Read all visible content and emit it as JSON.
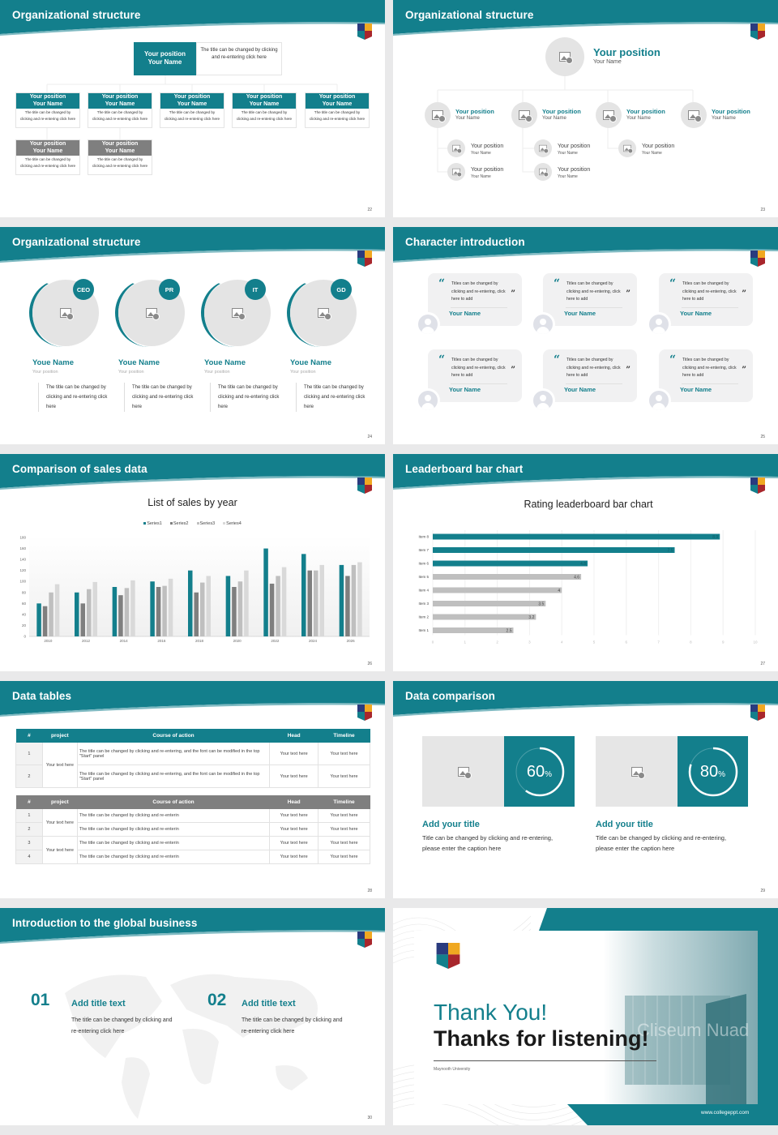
{
  "colors": {
    "accent": "#137f8c",
    "gray": "#7f7f7f",
    "panel": "#e6e6e6"
  },
  "s22": {
    "title": "Organizational structure",
    "page": "22",
    "head": {
      "position": "Your position",
      "name": "Your Name",
      "desc": "The title can be changed by clicking and re-entering click here"
    },
    "members": [
      {
        "position": "Your position",
        "name": "Your Name",
        "desc": "The title can be changed by clicking and re-entering click here",
        "tone": "accent"
      },
      {
        "position": "Your position",
        "name": "Your Name",
        "desc": "The title can be changed by clicking and re-entering click here",
        "tone": "accent"
      },
      {
        "position": "Your position",
        "name": "Your Name",
        "desc": "The title can be changed by clicking and re-entering click here",
        "tone": "accent"
      },
      {
        "position": "Your position",
        "name": "Your Name",
        "desc": "The title can be changed by clicking and re-entering click here",
        "tone": "accent"
      },
      {
        "position": "Your position",
        "name": "Your Name",
        "desc": "The title can be changed by clicking and re-entering click here",
        "tone": "accent"
      },
      {
        "position": "Your position",
        "name": "Your Name",
        "desc": "The title can be changed by clicking and re-entering click here",
        "tone": "gray"
      },
      {
        "position": "Your position",
        "name": "Your Name",
        "desc": "The title can be changed by clicking and re-entering click here",
        "tone": "gray"
      }
    ]
  },
  "s23": {
    "title": "Organizational structure",
    "page": "23",
    "head": {
      "position": "Your position",
      "name": "Your Name"
    },
    "branches": [
      {
        "position": "Your position",
        "name": "Your Name",
        "children": [
          {
            "position": "Your position",
            "name": "Your Name"
          },
          {
            "position": "Your position",
            "name": "Your Name"
          }
        ]
      },
      {
        "position": "Your position",
        "name": "Your Name",
        "children": [
          {
            "position": "Your position",
            "name": "Your Name"
          },
          {
            "position": "Your position",
            "name": "Your Name"
          }
        ]
      },
      {
        "position": "Your position",
        "name": "Your Name",
        "children": [
          {
            "position": "Your position",
            "name": "Your Name"
          }
        ]
      },
      {
        "position": "Your position",
        "name": "Your Name",
        "children": []
      }
    ]
  },
  "s24": {
    "title": "Organizational structure",
    "page": "24",
    "people": [
      {
        "badge": "CEO",
        "name": "Youe Name",
        "position": "Your position",
        "desc": "The title can be changed by clicking and re-entering click here"
      },
      {
        "badge": "PR",
        "name": "Youe Name",
        "position": "Your position",
        "desc": "The title can be changed by clicking and re-entering click here"
      },
      {
        "badge": "IT",
        "name": "Youe Name",
        "position": "Your position",
        "desc": "The title can be changed by clicking and re-entering click here"
      },
      {
        "badge": "GD",
        "name": "Youe Name",
        "position": "Your position",
        "desc": "The title can be changed by clicking and re-entering click here"
      }
    ]
  },
  "s25": {
    "title": "Character introduction",
    "page": "25",
    "cards": [
      {
        "quote": "Titles can be changed by clicking and re-entering, click here to add",
        "name": "Your Name"
      },
      {
        "quote": "Titles can be changed by clicking and re-entering, click here to add",
        "name": "Your Name"
      },
      {
        "quote": "Titles can be changed by clicking and re-entering, click here to add",
        "name": "Your Name"
      },
      {
        "quote": "Titles can be changed by clicking and re-entering, click here to add",
        "name": "Your Name"
      },
      {
        "quote": "Titles can be changed by clicking and re-entering, click here to add",
        "name": "Your Name"
      },
      {
        "quote": "Titles can be changed by clicking and re-entering, click here to add",
        "name": "Your Name"
      }
    ]
  },
  "s26": {
    "title": "Comparison of sales data",
    "page": "26"
  },
  "s27": {
    "title": "Leaderboard bar chart",
    "page": "27"
  },
  "chart_data": [
    {
      "type": "bar",
      "title": "List of sales by year",
      "xlabel": "",
      "ylabel": "",
      "ylim": [
        0,
        180
      ],
      "yticks": [
        0,
        20,
        40,
        60,
        80,
        100,
        120,
        140,
        160,
        180
      ],
      "grid": false,
      "legend": "top",
      "categories": [
        "2010",
        "2012",
        "2014",
        "2016",
        "2018",
        "2020",
        "2022",
        "2024",
        "2026"
      ],
      "series": [
        {
          "name": "Series1",
          "color": "#137f8c",
          "values": [
            60,
            80,
            90,
            100,
            120,
            110,
            160,
            150,
            130
          ]
        },
        {
          "name": "Series2",
          "color": "#7f7f7f",
          "values": [
            55,
            60,
            75,
            90,
            80,
            90,
            96,
            120,
            110
          ]
        },
        {
          "name": "Series3",
          "color": "#bfbfbf",
          "values": [
            80,
            86,
            88,
            92,
            98,
            100,
            110,
            120,
            130
          ]
        },
        {
          "name": "Series4",
          "color": "#d9d9d9",
          "values": [
            95,
            99,
            102,
            105,
            110,
            120,
            126,
            130,
            135
          ]
        }
      ]
    },
    {
      "type": "bar",
      "orientation": "horizontal",
      "title": "Rating leaderboard bar chart",
      "xlim": [
        0,
        10
      ],
      "xticks": [
        0,
        1,
        2,
        3,
        4,
        5,
        6,
        7,
        8,
        9,
        10
      ],
      "grid": true,
      "categories": [
        "Item 8",
        "Item 7",
        "Item 6",
        "Item 5",
        "Item 4",
        "Item 3",
        "Item 2",
        "Item 1"
      ],
      "values": [
        8.9,
        7.5,
        4.8,
        4.6,
        4,
        3.5,
        3.2,
        2.5
      ],
      "labels": [
        "8.9",
        "7.5",
        "4.8",
        "4.6",
        "4",
        "3.5",
        "3.2",
        "2.5"
      ],
      "colors": [
        "#137f8c",
        "#137f8c",
        "#137f8c",
        "#bfbfbf",
        "#bfbfbf",
        "#bfbfbf",
        "#bfbfbf",
        "#bfbfbf"
      ]
    }
  ],
  "s28": {
    "title": "Data tables",
    "page": "28",
    "headers": [
      "#",
      "project",
      "Course of action",
      "Head",
      "Timeline"
    ],
    "table1": {
      "project": "Your text here",
      "rows": [
        {
          "n": "1",
          "action": "The title can be changed by clicking and re-entering, and the font can be modified in the top \"Start\" panel",
          "head": "Your text here",
          "timeline": "Your text here"
        },
        {
          "n": "2",
          "action": "The title can be changed by clicking and re-entering, and the font can be modified in the top \"Start\" panel",
          "head": "Your text here",
          "timeline": "Your text here"
        }
      ]
    },
    "table2": {
      "projects": [
        "Your text here",
        "Your text here"
      ],
      "rows": [
        {
          "n": "1",
          "action": "The title can be changed by clicking and re-enterin",
          "head": "Your text here",
          "timeline": "Your text here"
        },
        {
          "n": "2",
          "action": "The title can be changed by clicking and re-enterin",
          "head": "Your text here",
          "timeline": "Your text here"
        },
        {
          "n": "3",
          "action": "The title can be changed by clicking and re-enterin",
          "head": "Your text here",
          "timeline": "Your text here"
        },
        {
          "n": "4",
          "action": "The title can be changed by clicking and re-enterin",
          "head": "Your text here",
          "timeline": "Your text here"
        }
      ]
    }
  },
  "s29": {
    "title": "Data comparison",
    "page": "29",
    "panels": [
      {
        "percent": 60,
        "value": "60",
        "unit": "%",
        "title": "Add your title",
        "desc": "Title can be changed by clicking and re-entering, please enter the caption here"
      },
      {
        "percent": 80,
        "value": "80",
        "unit": "%",
        "title": "Add your title",
        "desc": "Title can be changed by clicking and re-entering, please enter the caption here"
      }
    ]
  },
  "s30": {
    "title": "Introduction to the global business",
    "page": "30",
    "items": [
      {
        "num": "01",
        "title": "Add title text",
        "desc": "The title can be changed by clicking and re-entering click here"
      },
      {
        "num": "02",
        "title": "Add title text",
        "desc": "The title can be changed by clicking and re-entering click here"
      }
    ]
  },
  "s31": {
    "thanks": "Thank You!",
    "subtitle": "Thanks for listening!",
    "university": "Maynooth University",
    "url": "www.collegeppt.com",
    "photo_sign": "Cliseum Nuad"
  }
}
